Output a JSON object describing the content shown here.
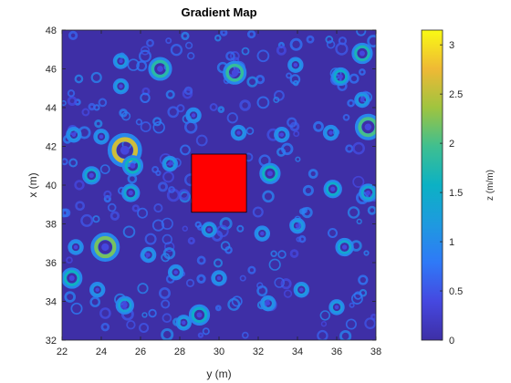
{
  "chart_data": {
    "type": "heatmap",
    "title": "Gradient Map",
    "xlabel": "y (m)",
    "ylabel": "x (m)",
    "xlim": [
      22,
      38
    ],
    "ylim": [
      32,
      48
    ],
    "xticks": [
      22,
      24,
      26,
      28,
      30,
      32,
      34,
      36,
      38
    ],
    "yticks": [
      32,
      34,
      36,
      38,
      40,
      42,
      44,
      46,
      48
    ],
    "colormap": "parula",
    "background_color": "#3e2fa6",
    "colorbar": {
      "label": "z (m/m)",
      "range": [
        0,
        3.15
      ],
      "ticks": [
        0,
        0.5,
        1,
        1.5,
        2,
        2.5,
        3
      ],
      "tick_labels": [
        "0",
        "0.5",
        "1",
        "1.5",
        "2",
        "2.5",
        "3"
      ]
    },
    "obstacle": {
      "shape": "rectangle",
      "color": "#ff0000",
      "x_range": [
        28.6,
        31.4
      ],
      "y_range": [
        38.6,
        41.6
      ]
    },
    "features": [
      {
        "y": 25.2,
        "x": 41.8,
        "r": 0.65,
        "z": 2.6
      },
      {
        "y": 24.2,
        "x": 36.8,
        "r": 0.55,
        "z": 2.2
      },
      {
        "y": 37.6,
        "x": 43.0,
        "r": 0.5,
        "z": 2.0
      },
      {
        "y": 27.0,
        "x": 46.0,
        "r": 0.45,
        "z": 1.8
      },
      {
        "y": 30.8,
        "x": 45.8,
        "r": 0.45,
        "z": 1.9
      },
      {
        "y": 37.3,
        "x": 46.8,
        "r": 0.4,
        "z": 1.7
      },
      {
        "y": 36.2,
        "x": 45.6,
        "r": 0.35,
        "z": 1.5
      },
      {
        "y": 25.6,
        "x": 41.0,
        "r": 0.4,
        "z": 1.6
      },
      {
        "y": 32.6,
        "x": 40.6,
        "r": 0.4,
        "z": 1.6
      },
      {
        "y": 29.0,
        "x": 33.3,
        "r": 0.4,
        "z": 1.5
      },
      {
        "y": 23.5,
        "x": 40.5,
        "r": 0.35,
        "z": 1.4
      },
      {
        "y": 35.8,
        "x": 39.8,
        "r": 0.35,
        "z": 1.5
      },
      {
        "y": 37.6,
        "x": 39.6,
        "r": 0.35,
        "z": 1.4
      },
      {
        "y": 25.5,
        "x": 39.6,
        "r": 0.35,
        "z": 1.4
      },
      {
        "y": 22.5,
        "x": 35.2,
        "r": 0.4,
        "z": 1.6
      },
      {
        "y": 36.4,
        "x": 36.8,
        "r": 0.35,
        "z": 1.4
      },
      {
        "y": 25.2,
        "x": 33.8,
        "r": 0.35,
        "z": 1.3
      },
      {
        "y": 28.2,
        "x": 32.9,
        "r": 0.3,
        "z": 1.2
      },
      {
        "y": 25.0,
        "x": 46.4,
        "r": 0.3,
        "z": 1.2
      },
      {
        "y": 25.0,
        "x": 45.1,
        "r": 0.3,
        "z": 1.2
      },
      {
        "y": 37.3,
        "x": 44.4,
        "r": 0.3,
        "z": 1.2
      },
      {
        "y": 24.0,
        "x": 42.5,
        "r": 0.3,
        "z": 1.1
      },
      {
        "y": 27.5,
        "x": 41.1,
        "r": 0.3,
        "z": 1.2
      },
      {
        "y": 22.6,
        "x": 42.6,
        "r": 0.3,
        "z": 1.1
      },
      {
        "y": 26.4,
        "x": 36.4,
        "r": 0.3,
        "z": 1.1
      },
      {
        "y": 29.5,
        "x": 37.7,
        "r": 0.3,
        "z": 1.2
      },
      {
        "y": 34.0,
        "x": 37.9,
        "r": 0.3,
        "z": 1.2
      },
      {
        "y": 32.2,
        "x": 37.5,
        "r": 0.3,
        "z": 1.1
      },
      {
        "y": 34.2,
        "x": 34.6,
        "r": 0.3,
        "z": 1.2
      },
      {
        "y": 30.0,
        "x": 35.2,
        "r": 0.3,
        "z": 1.1
      },
      {
        "y": 32.5,
        "x": 33.9,
        "r": 0.3,
        "z": 1.1
      },
      {
        "y": 36.0,
        "x": 33.7,
        "r": 0.3,
        "z": 1.2
      },
      {
        "y": 23.8,
        "x": 34.6,
        "r": 0.3,
        "z": 1.1
      },
      {
        "y": 27.8,
        "x": 35.5,
        "r": 0.3,
        "z": 1.1
      },
      {
        "y": 33.9,
        "x": 46.2,
        "r": 0.3,
        "z": 1.1
      },
      {
        "y": 33.2,
        "x": 42.6,
        "r": 0.3,
        "z": 1.1
      },
      {
        "y": 35.7,
        "x": 42.7,
        "r": 0.3,
        "z": 1.1
      },
      {
        "y": 31.0,
        "x": 42.7,
        "r": 0.3,
        "z": 1.1
      },
      {
        "y": 28.7,
        "x": 43.6,
        "r": 0.3,
        "z": 1.0
      },
      {
        "y": 22.7,
        "x": 36.8,
        "r": 0.3,
        "z": 1.1
      }
    ]
  }
}
